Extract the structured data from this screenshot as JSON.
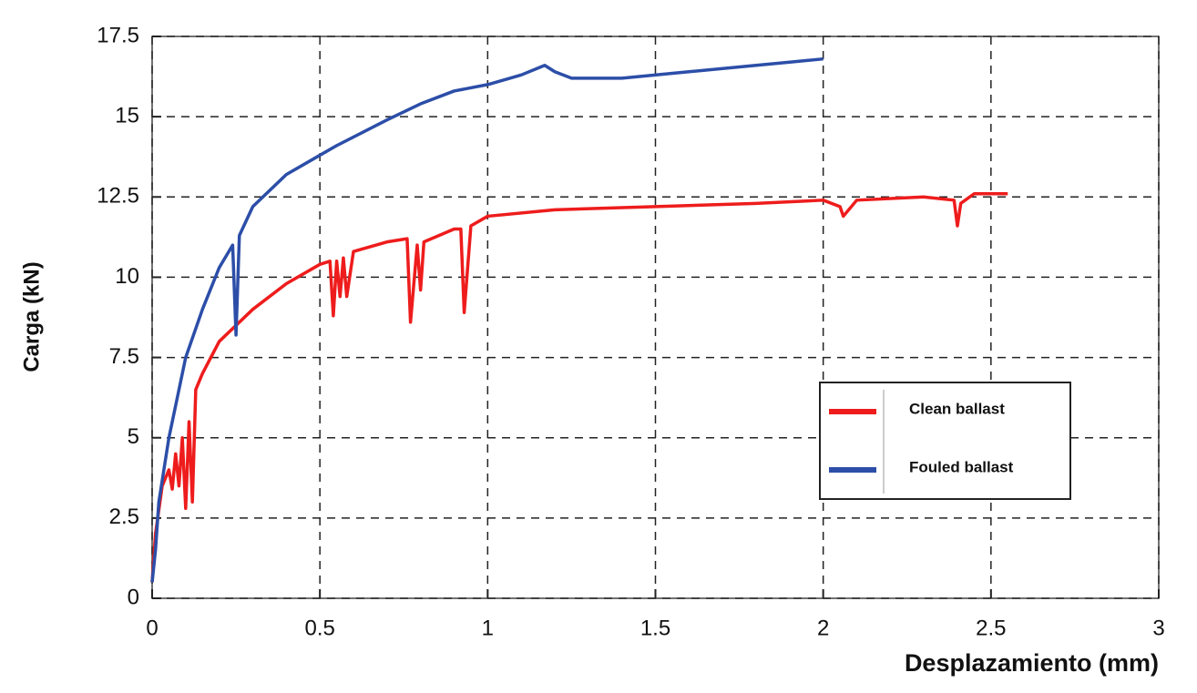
{
  "chart_data": {
    "type": "line",
    "x_label": "Desplazamiento (mm)",
    "y_label": "Carga (kN)",
    "xlim": [
      0,
      3
    ],
    "xticks": [
      0,
      0.5,
      1,
      1.5,
      2,
      2.5,
      3
    ],
    "ylim": [
      0,
      17.5
    ],
    "yticks": [
      0,
      2.5,
      5,
      7.5,
      10,
      12.5,
      15,
      17.5
    ],
    "grid": true,
    "legend": "lower right",
    "series": [
      {
        "name": "Clean ballast",
        "color": "#ee1c1c",
        "x": [
          0,
          0.01,
          0.03,
          0.05,
          0.06,
          0.07,
          0.08,
          0.09,
          0.1,
          0.11,
          0.12,
          0.13,
          0.15,
          0.2,
          0.3,
          0.4,
          0.5,
          0.53,
          0.54,
          0.55,
          0.56,
          0.57,
          0.58,
          0.6,
          0.7,
          0.76,
          0.77,
          0.79,
          0.8,
          0.81,
          0.9,
          0.92,
          0.93,
          0.95,
          1.0,
          1.2,
          1.5,
          1.8,
          2.0,
          2.05,
          2.06,
          2.1,
          2.3,
          2.39,
          2.4,
          2.41,
          2.45,
          2.55
        ],
        "values": [
          0.5,
          2,
          3.5,
          4,
          3.4,
          4.5,
          3.5,
          5,
          2.8,
          5.5,
          3,
          6.5,
          7,
          8,
          9,
          9.8,
          10.4,
          10.5,
          8.8,
          10.5,
          9.4,
          10.6,
          9.4,
          10.8,
          11.1,
          11.2,
          8.6,
          11.0,
          9.6,
          11.1,
          11.5,
          11.5,
          8.9,
          11.6,
          11.9,
          12.1,
          12.2,
          12.3,
          12.4,
          12.2,
          11.9,
          12.4,
          12.5,
          12.4,
          11.6,
          12.3,
          12.6,
          12.6
        ]
      },
      {
        "name": "Fouled ballast",
        "color": "#2c4ea8",
        "x": [
          0,
          0.01,
          0.02,
          0.05,
          0.1,
          0.15,
          0.2,
          0.24,
          0.25,
          0.26,
          0.3,
          0.4,
          0.5,
          0.55,
          0.7,
          0.8,
          0.9,
          1.0,
          1.1,
          1.17,
          1.2,
          1.25,
          1.4,
          1.6,
          1.8,
          1.9,
          2.0
        ],
        "values": [
          0.5,
          1.5,
          3,
          5,
          7.5,
          9,
          10.3,
          11,
          8.2,
          11.3,
          12.2,
          13.2,
          13.8,
          14.1,
          14.9,
          15.4,
          15.8,
          16.0,
          16.3,
          16.6,
          16.4,
          16.2,
          16.2,
          16.4,
          16.6,
          16.7,
          16.8
        ]
      }
    ]
  }
}
